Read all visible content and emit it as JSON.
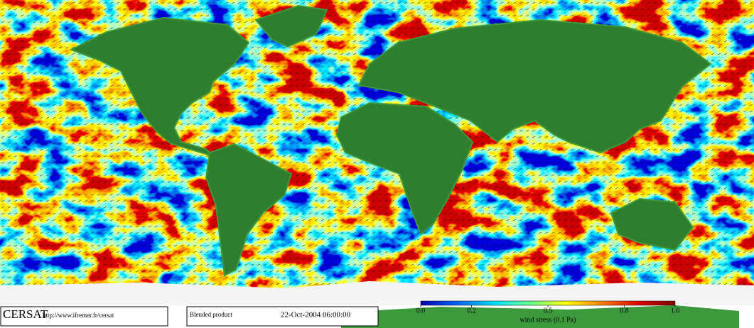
{
  "footer": {
    "logo": "CERSAT",
    "url": "http://www.ifremer.fr/cersat",
    "product": "Blended product",
    "date": "22-Oct-2004 06:00:00"
  },
  "colorbar": {
    "label": "wind stress (0.1 Pa)",
    "lim": [
      0,
      1
    ],
    "ticks": [
      {
        "value": 0,
        "label": "0.0"
      },
      0.2,
      0.5,
      0.8,
      {
        "value": 1,
        "label": "1.0"
      }
    ],
    "colors": [
      "#0000b0",
      "#0060ff",
      "#00e0ff",
      "#60ff90",
      "#ffff00",
      "#ff8000",
      "#e00000",
      "#800000"
    ]
  }
}
